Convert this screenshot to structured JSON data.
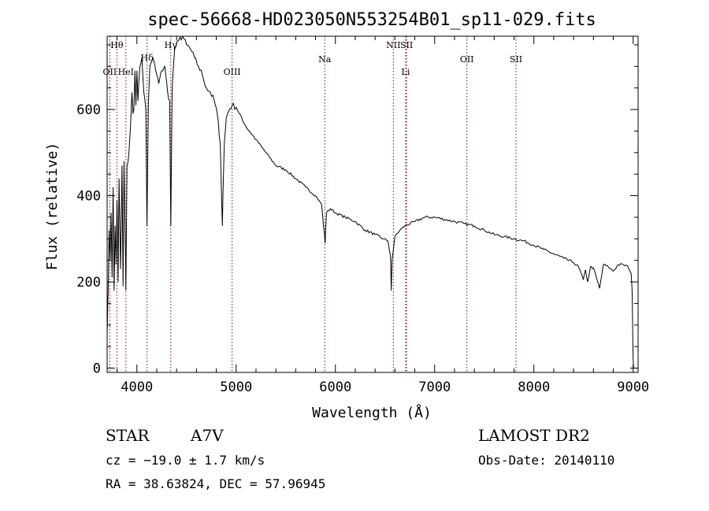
{
  "figure": {
    "title": "spec-56668-HD023050N553254B01_sp11-029.fits",
    "info": {
      "object_class": "STAR",
      "subclass": "A7V",
      "survey": "LAMOST DR2",
      "cz": "cz = −19.0 ± 1.7 km/s",
      "obs_date": "Obs-Date: 20140110",
      "coords": "RA =  38.63824, DEC =  57.96945"
    }
  },
  "chart_data": {
    "type": "line",
    "title": "spec-56668-HD023050N553254B01_sp11-029.fits",
    "xlabel": "Wavelength (Å)",
    "ylabel": "Flux (relative)",
    "xlim": [
      3700,
      9050
    ],
    "ylim": [
      -10,
      770
    ],
    "xticks": [
      4000,
      5000,
      6000,
      7000,
      8000,
      9000
    ],
    "yticks": [
      0,
      200,
      400,
      600
    ],
    "grid": false,
    "series": [
      {
        "name": "",
        "x": [
          3700,
          3710,
          3720,
          3730,
          3740,
          3750,
          3760,
          3770,
          3780,
          3790,
          3800,
          3810,
          3820,
          3835,
          3850,
          3860,
          3870,
          3885,
          3889,
          3900,
          3920,
          3935,
          3950,
          3960,
          3969,
          3980,
          3990,
          4000,
          4010,
          4030,
          4050,
          4070,
          4090,
          4102,
          4115,
          4130,
          4160,
          4190,
          4220,
          4250,
          4280,
          4310,
          4330,
          4341,
          4355,
          4380,
          4420,
          4460,
          4500,
          4540,
          4580,
          4620,
          4660,
          4700,
          4740,
          4780,
          4810,
          4840,
          4855,
          4861,
          4868,
          4880,
          4900,
          4930,
          4960,
          5000,
          5100,
          5200,
          5300,
          5400,
          5500,
          5600,
          5700,
          5800,
          5860,
          5890,
          5896,
          5910,
          5950,
          6000,
          6100,
          6200,
          6300,
          6400,
          6480,
          6530,
          6555,
          6563,
          6571,
          6600,
          6650,
          6700,
          6800,
          6900,
          7000,
          7100,
          7200,
          7300,
          7400,
          7500,
          7600,
          7700,
          7800,
          7900,
          8000,
          8100,
          8200,
          8300,
          8400,
          8450,
          8498,
          8520,
          8542,
          8570,
          8600,
          8662,
          8700,
          8750,
          8800,
          8850,
          8900,
          8950,
          8980,
          8990,
          9000,
          9005
        ],
        "values": [
          80,
          180,
          320,
          250,
          360,
          210,
          420,
          180,
          330,
          240,
          390,
          200,
          440,
          230,
          470,
          190,
          480,
          260,
          180,
          470,
          500,
          560,
          640,
          590,
          600,
          690,
          610,
          690,
          620,
          700,
          720,
          640,
          600,
          330,
          610,
          700,
          720,
          690,
          660,
          690,
          700,
          640,
          620,
          330,
          650,
          740,
          760,
          770,
          750,
          740,
          720,
          700,
          680,
          650,
          640,
          620,
          590,
          520,
          380,
          330,
          410,
          520,
          580,
          600,
          610,
          605,
          560,
          530,
          500,
          470,
          460,
          440,
          420,
          400,
          380,
          310,
          290,
          360,
          370,
          360,
          350,
          340,
          320,
          310,
          300,
          295,
          260,
          180,
          250,
          305,
          320,
          330,
          340,
          350,
          350,
          345,
          340,
          335,
          330,
          320,
          310,
          305,
          300,
          295,
          285,
          275,
          265,
          255,
          245,
          235,
          205,
          228,
          200,
          235,
          232,
          185,
          240,
          235,
          225,
          240,
          240,
          235,
          220,
          180,
          20,
          0
        ]
      }
    ],
    "lines": [
      {
        "label": "Hθ",
        "x": 3798,
        "row": 0
      },
      {
        "label": "OII",
        "x": 3727,
        "row": 1
      },
      {
        "label": "HeI",
        "x": 3889,
        "row": 1
      },
      {
        "label": "Hδ",
        "x": 4102,
        "row": 2
      },
      {
        "label": "Hγ",
        "x": 4341,
        "row": 0
      },
      {
        "label": "OIII",
        "x": 4959,
        "row": 1
      },
      {
        "label": "Na",
        "x": 5893,
        "row": 3
      },
      {
        "label": "NII",
        "x": 6584,
        "row": 0
      },
      {
        "label": "SII",
        "x": 6717,
        "row": 0
      },
      {
        "label": "Li",
        "x": 6708,
        "row": 1
      },
      {
        "label": "OII",
        "x": 7325,
        "row": 3
      },
      {
        "label": "SII",
        "x": 7820,
        "row": 3
      }
    ],
    "line_color": "#990000",
    "data_color": "#000000"
  }
}
